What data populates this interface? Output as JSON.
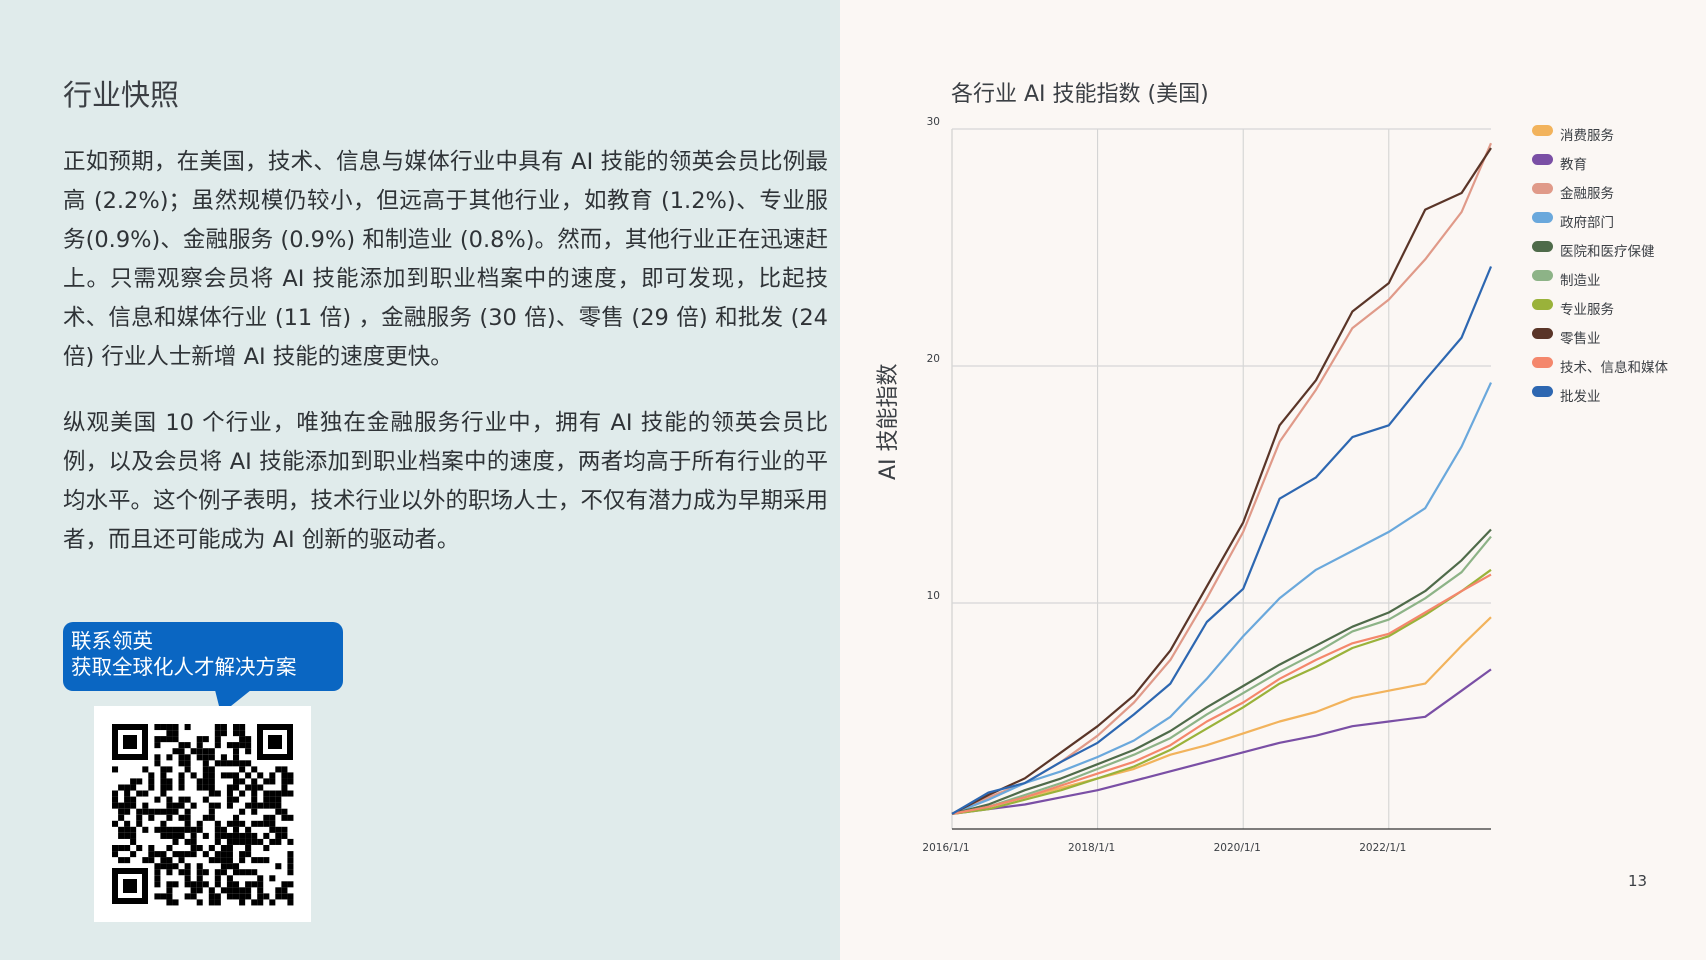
{
  "left": {
    "title": "行业快照",
    "paragraphs": [
      "正如预期，在美国，技术、信息与媒体行业中具有 AI 技能的领英会员比例最高 (2.2%)；虽然规模仍较小，但远高于其他行业，如教育 (1.2%)、专业服务(0.9%)、金融服务 (0.9%) 和制造业 (0.8%)。然而，其他行业正在迅速赶上。只需观察会员将 AI 技能添加到职业档案中的速度，即可发现，比起技术、信息和媒体行业 (11 倍) ，金融服务 (30 倍)、零售 (29 倍) 和批发 (24 倍) 行业人士新增 AI 技能的速度更快。",
      "纵观美国 10 个行业，唯独在金融服务行业中，拥有 AI 技能的领英会员比例，以及会员将  AI  技能添加到职业档案中的速度，两者均高于所有行业的平均水平。这个例子表明，技术行业以外的职场人士，不仅有潜力成为早期采用者，而且还可能成为 AI 创新的驱动者。"
    ],
    "cta": {
      "line1": "联系领英",
      "line2": "获取全球化人才解决方案",
      "color": "#0a66c2"
    },
    "qr_icon": "qr-code-icon"
  },
  "page_number": "13",
  "chart_data": {
    "type": "line",
    "title": "各行业 AI 技能指数 (美国)",
    "xlabel": "",
    "ylabel": "AI 技能指数",
    "x_tick_labels": [
      "2016/1/1",
      "2018/1/1",
      "2020/1/1",
      "2022/1/1"
    ],
    "y_tick_labels": [
      "30",
      "20",
      "10"
    ],
    "grid": true,
    "legend_position": "right",
    "x": [
      "2016-01",
      "2016-07",
      "2017-01",
      "2017-07",
      "2018-01",
      "2018-07",
      "2019-01",
      "2019-07",
      "2020-01",
      "2020-07",
      "2021-01",
      "2021-07",
      "2022-01",
      "2022-07",
      "2023-01",
      "2023-05"
    ],
    "series": [
      {
        "name": "消费服务",
        "color": "#f2b35c",
        "values": [
          1.1,
          1.4,
          1.8,
          2.2,
          2.6,
          3.0,
          3.6,
          4.0,
          4.5,
          5.0,
          5.4,
          6.0,
          6.3,
          6.6,
          8.2,
          9.4
        ]
      },
      {
        "name": "教育",
        "color": "#7a4fa5",
        "values": [
          1.1,
          1.3,
          1.5,
          1.8,
          2.1,
          2.5,
          2.9,
          3.3,
          3.7,
          4.1,
          4.4,
          4.8,
          5.0,
          5.2,
          6.3,
          7.2
        ]
      },
      {
        "name": "金融服务",
        "color": "#e09a89",
        "values": [
          1.1,
          1.8,
          2.4,
          3.3,
          4.4,
          5.8,
          7.6,
          10.2,
          13.0,
          16.8,
          19.0,
          21.6,
          22.8,
          24.5,
          26.5,
          29.4
        ]
      },
      {
        "name": "政府部门",
        "color": "#6aa8dc",
        "values": [
          1.1,
          1.7,
          2.4,
          2.9,
          3.5,
          4.2,
          5.2,
          6.8,
          8.6,
          10.2,
          11.4,
          12.2,
          13.0,
          14.0,
          16.6,
          19.3
        ]
      },
      {
        "name": "医院和医疗保健",
        "color": "#4f6b4a",
        "values": [
          1.1,
          1.5,
          2.1,
          2.6,
          3.2,
          3.8,
          4.6,
          5.6,
          6.5,
          7.4,
          8.2,
          9.0,
          9.6,
          10.5,
          11.8,
          13.1
        ]
      },
      {
        "name": "制造业",
        "color": "#8db387",
        "values": [
          1.1,
          1.4,
          1.9,
          2.4,
          3.0,
          3.6,
          4.3,
          5.3,
          6.2,
          7.1,
          7.9,
          8.8,
          9.3,
          10.2,
          11.3,
          12.8
        ]
      },
      {
        "name": "专业服务",
        "color": "#9ab23a",
        "values": [
          1.1,
          1.3,
          1.7,
          2.1,
          2.6,
          3.1,
          3.8,
          4.7,
          5.6,
          6.6,
          7.3,
          8.1,
          8.6,
          9.5,
          10.5,
          11.4
        ]
      },
      {
        "name": "零售业",
        "color": "#5a3528",
        "values": [
          1.1,
          1.9,
          2.6,
          3.7,
          4.8,
          6.1,
          8.0,
          10.7,
          13.4,
          17.5,
          19.4,
          22.3,
          23.5,
          26.6,
          27.3,
          29.2
        ]
      },
      {
        "name": "技术、信息和媒体",
        "color": "#f4876c",
        "values": [
          1.1,
          1.4,
          1.8,
          2.3,
          2.8,
          3.3,
          4.0,
          5.0,
          5.8,
          6.8,
          7.6,
          8.3,
          8.7,
          9.6,
          10.5,
          11.2
        ]
      },
      {
        "name": "批发业",
        "color": "#2d67b1",
        "values": [
          1.1,
          2.0,
          2.4,
          3.3,
          4.1,
          5.3,
          6.6,
          9.2,
          10.6,
          14.4,
          15.3,
          17.0,
          17.5,
          19.4,
          21.2,
          24.2
        ]
      }
    ]
  }
}
